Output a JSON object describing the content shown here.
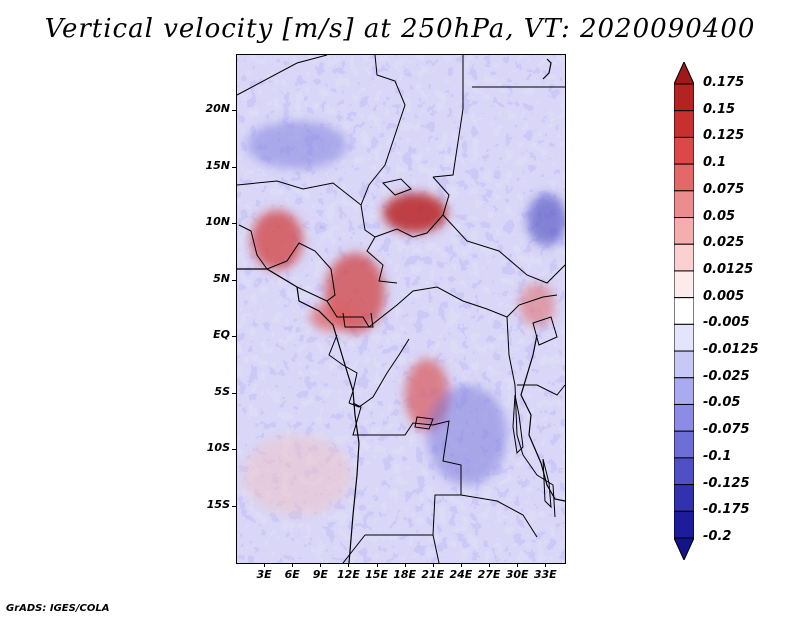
{
  "title": "Vertical velocity [m/s] at 250hPa, VT: 2020090400",
  "credit": "GrADS: IGES/COLA",
  "lat_labels": [
    "20N",
    "15N",
    "10N",
    "5N",
    "EQ",
    "5S",
    "10S",
    "15S"
  ],
  "lon_labels": [
    "3E",
    "6E",
    "9E",
    "12E",
    "15E",
    "18E",
    "21E",
    "24E",
    "27E",
    "30E",
    "33E"
  ],
  "colorbar": {
    "levels": [
      "0.175",
      "0.15",
      "0.125",
      "0.1",
      "0.075",
      "0.05",
      "0.025",
      "0.0125",
      "0.005",
      "-0.005",
      "-0.0125",
      "-0.025",
      "-0.05",
      "-0.075",
      "-0.1",
      "-0.125",
      "-0.175",
      "-0.2"
    ],
    "colors": [
      "#a01818",
      "#b42222",
      "#c83030",
      "#dc4848",
      "#e46868",
      "#ec8c8c",
      "#f4aeae",
      "#fad0d0",
      "#fdeaea",
      "#ffffff",
      "#e4e4fc",
      "#c8c8f6",
      "#aaaaf0",
      "#8c8ce6",
      "#6e6ed8",
      "#5050c6",
      "#3232b0",
      "#1c1c9c",
      "#14148a"
    ]
  },
  "chart_data": {
    "type": "heatmap",
    "title": "Vertical velocity [m/s] at 250hPa, VT: 2020090400",
    "variable": "Vertical velocity",
    "units": "m/s",
    "level": "250hPa",
    "valid_time": "2020090400",
    "lon_range": [
      0,
      35
    ],
    "lat_range": [
      -20,
      25
    ],
    "xticks": [
      "3E",
      "6E",
      "9E",
      "12E",
      "15E",
      "18E",
      "21E",
      "24E",
      "27E",
      "30E",
      "33E"
    ],
    "yticks": [
      "20N",
      "15N",
      "10N",
      "5N",
      "EQ",
      "5S",
      "10S",
      "15S"
    ],
    "contour_levels": [
      -0.2,
      -0.175,
      -0.125,
      -0.1,
      -0.075,
      -0.05,
      -0.025,
      -0.0125,
      -0.005,
      0.005,
      0.0125,
      0.025,
      0.05,
      0.075,
      0.1,
      0.125,
      0.15,
      0.175
    ]
  }
}
